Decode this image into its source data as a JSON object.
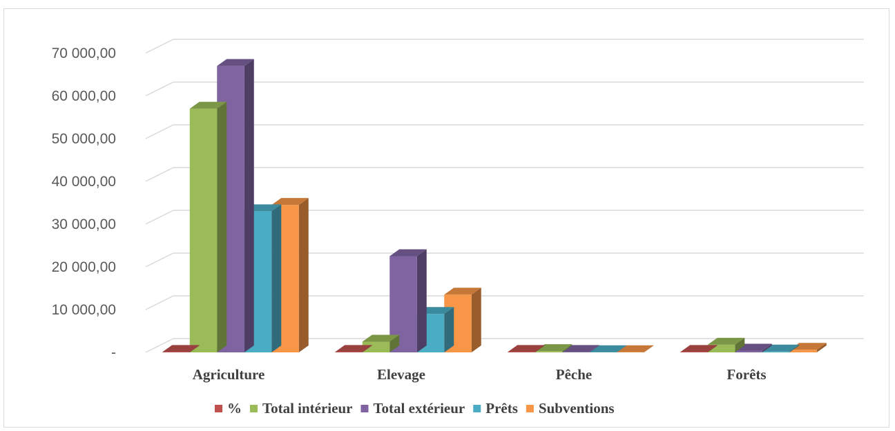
{
  "chart_data": {
    "type": "bar",
    "title": "",
    "xlabel": "",
    "ylabel": "",
    "categories": [
      "Agriculture",
      "Elevage",
      "Pêche",
      "Forêts"
    ],
    "ylim": [
      0,
      70000
    ],
    "y_ticks": [
      {
        "value": 0,
        "label": "-"
      },
      {
        "value": 10000,
        "label": "10 000,00"
      },
      {
        "value": 20000,
        "label": "20 000,00"
      },
      {
        "value": 30000,
        "label": "30 000,00"
      },
      {
        "value": 40000,
        "label": "40 000,00"
      },
      {
        "value": 50000,
        "label": "50 000,00"
      },
      {
        "value": 60000,
        "label": "60 000,00"
      },
      {
        "value": 70000,
        "label": "70 000,00"
      }
    ],
    "grid": true,
    "perspective": "3d",
    "legend_position": "bottom",
    "series": [
      {
        "name": "%",
        "color": "#c0504d",
        "values": [
          100,
          100,
          100,
          100
        ]
      },
      {
        "name": "Total intérieur",
        "color": "#9bbb59",
        "values": [
          57000,
          2500,
          300,
          1800
        ]
      },
      {
        "name": "Total extérieur",
        "color": "#8064a2",
        "values": [
          67000,
          22500,
          100,
          400
        ]
      },
      {
        "name": "Prêts",
        "color": "#4bacc6",
        "values": [
          33000,
          9000,
          50,
          200
        ]
      },
      {
        "name": "Subventions",
        "color": "#f79646",
        "values": [
          34500,
          13500,
          50,
          600
        ]
      }
    ]
  }
}
